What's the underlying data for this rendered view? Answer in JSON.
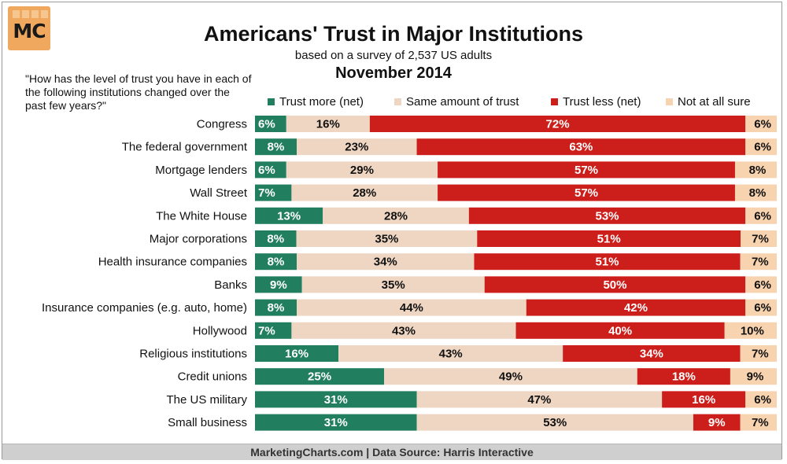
{
  "header": {
    "logo_text": "MC",
    "title": "Americans' Trust in Major Institutions",
    "subtitle": "based on a survey of 2,537 US adults",
    "date": "November 2014",
    "question": "\"How has the level of trust you have in each of the following institutions changed over the past few years?\""
  },
  "colors": {
    "trust_more": "#217e5e",
    "same": "#eed6c3",
    "trust_less": "#cc1f1b",
    "not_sure": "#f8d3b0"
  },
  "footer": {
    "text": "MarketingCharts.com | Data Source: Harris Interactive"
  },
  "chart_data": {
    "type": "bar",
    "orientation": "horizontal",
    "stacked": true,
    "title": "Americans' Trust in Major Institutions",
    "categories": [
      "Congress",
      "The federal government",
      "Mortgage lenders",
      "Wall Street",
      "The White House",
      "Major corporations",
      "Health insurance companies",
      "Banks",
      "Insurance companies (e.g. auto, home)",
      "Hollywood",
      "Religious institutions",
      "Credit unions",
      "The US military",
      "Small business"
    ],
    "series": [
      {
        "name": "Trust more (net)",
        "values": [
          6,
          8,
          6,
          7,
          13,
          8,
          8,
          9,
          8,
          7,
          16,
          25,
          31,
          31
        ]
      },
      {
        "name": "Same amount of trust",
        "values": [
          16,
          23,
          29,
          28,
          28,
          35,
          34,
          35,
          44,
          43,
          43,
          49,
          47,
          53
        ]
      },
      {
        "name": "Trust less (net)",
        "values": [
          72,
          63,
          57,
          57,
          53,
          51,
          51,
          50,
          42,
          40,
          34,
          18,
          16,
          9
        ]
      },
      {
        "name": "Not at all sure",
        "values": [
          6,
          6,
          8,
          8,
          6,
          7,
          7,
          6,
          6,
          10,
          7,
          9,
          6,
          7
        ]
      }
    ],
    "value_suffix": "%",
    "legend_position": "top"
  }
}
